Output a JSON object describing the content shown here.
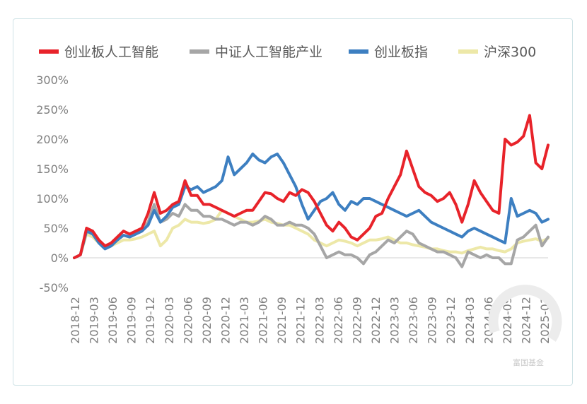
{
  "chart_data": {
    "type": "line",
    "title": "",
    "xlabel": "",
    "ylabel": "",
    "ylim": [
      -50,
      300
    ],
    "y_ticks": [
      "300%",
      "250%",
      "200%",
      "150%",
      "100%",
      "50%",
      "0%",
      "-50%"
    ],
    "y_tick_values": [
      300,
      250,
      200,
      150,
      100,
      50,
      0,
      -50
    ],
    "x_tick_labels": [
      "2018-12",
      "2019-03",
      "2019-06",
      "2019-09",
      "2019-12",
      "2020-03",
      "2020-06",
      "2020-09",
      "2020-12",
      "2021-03",
      "2021-06",
      "2021-09",
      "2021-12",
      "2022-03",
      "2022-06",
      "2022-09",
      "2022-12",
      "2023-03",
      "2023-06",
      "2023-09",
      "2023-12",
      "2024-03",
      "2024-06",
      "2024-09",
      "2024-12",
      "2025-03"
    ],
    "x_range": [
      0,
      77
    ],
    "grid": false,
    "legend_position": "top",
    "watermark": "富国基金",
    "series": [
      {
        "name": "创业板人工智能",
        "color": "#e8232a",
        "x": [
          0,
          1,
          2,
          3,
          4,
          5,
          6,
          7,
          8,
          9,
          10,
          11,
          12,
          13,
          14,
          15,
          16,
          17,
          18,
          19,
          20,
          21,
          22,
          23,
          24,
          25,
          26,
          27,
          28,
          29,
          30,
          31,
          32,
          33,
          34,
          35,
          36,
          37,
          38,
          39,
          40,
          41,
          42,
          43,
          44,
          45,
          46,
          47,
          48,
          49,
          50,
          51,
          52,
          53,
          54,
          55,
          56,
          57,
          58,
          59,
          60,
          61,
          62,
          63,
          64,
          65,
          66,
          67,
          68,
          69,
          70,
          71,
          72,
          73,
          74,
          75,
          76,
          77
        ],
        "values": [
          0,
          5,
          50,
          45,
          30,
          20,
          25,
          35,
          45,
          40,
          45,
          50,
          75,
          110,
          75,
          80,
          90,
          95,
          130,
          105,
          105,
          90,
          90,
          85,
          80,
          75,
          70,
          75,
          80,
          80,
          95,
          110,
          108,
          100,
          95,
          110,
          105,
          115,
          110,
          95,
          75,
          55,
          45,
          60,
          50,
          35,
          30,
          40,
          50,
          70,
          75,
          100,
          120,
          140,
          180,
          150,
          120,
          110,
          105,
          95,
          100,
          110,
          90,
          60,
          90,
          130,
          110,
          95,
          80,
          75,
          200,
          190,
          195,
          205,
          240,
          160,
          150,
          190
        ],
        "ref_labels": {
          "0": "2018-12",
          "3": "2019-03",
          "12": "2019-12",
          "24": "2020-12",
          "36": "2021-12",
          "48": "2022-12",
          "60": "2023-12",
          "72": "2024-12"
        }
      },
      {
        "name": "中证人工智能产业",
        "color": "#a6a6a6",
        "x": [
          0,
          1,
          2,
          3,
          4,
          5,
          6,
          7,
          8,
          9,
          10,
          11,
          12,
          13,
          14,
          15,
          16,
          17,
          18,
          19,
          20,
          21,
          22,
          23,
          24,
          25,
          26,
          27,
          28,
          29,
          30,
          31,
          32,
          33,
          34,
          35,
          36,
          37,
          38,
          39,
          40,
          41,
          42,
          43,
          44,
          45,
          46,
          47,
          48,
          49,
          50,
          51,
          52,
          53,
          54,
          55,
          56,
          57,
          58,
          59,
          60,
          61,
          62,
          63,
          64,
          65,
          66,
          67,
          68,
          69,
          70,
          71,
          72,
          73,
          74,
          75,
          76,
          77
        ],
        "values": [
          0,
          5,
          48,
          40,
          28,
          20,
          22,
          30,
          38,
          35,
          40,
          45,
          60,
          90,
          60,
          65,
          75,
          70,
          90,
          80,
          80,
          70,
          70,
          65,
          65,
          60,
          55,
          60,
          60,
          55,
          60,
          70,
          65,
          55,
          55,
          60,
          55,
          55,
          50,
          40,
          20,
          0,
          5,
          10,
          5,
          5,
          0,
          -10,
          5,
          10,
          20,
          30,
          25,
          35,
          45,
          40,
          25,
          20,
          15,
          10,
          10,
          5,
          0,
          -15,
          10,
          5,
          0,
          5,
          0,
          0,
          -10,
          -10,
          30,
          35,
          45,
          55,
          20,
          35
        ]
      },
      {
        "name": "创业板指",
        "color": "#3d7fc1",
        "x": [
          0,
          1,
          2,
          3,
          4,
          5,
          6,
          7,
          8,
          9,
          10,
          11,
          12,
          13,
          14,
          15,
          16,
          17,
          18,
          19,
          20,
          21,
          22,
          23,
          24,
          25,
          26,
          27,
          28,
          29,
          30,
          31,
          32,
          33,
          34,
          35,
          36,
          37,
          38,
          39,
          40,
          41,
          42,
          43,
          44,
          45,
          46,
          47,
          48,
          49,
          50,
          51,
          52,
          53,
          54,
          55,
          56,
          57,
          58,
          59,
          60,
          61,
          62,
          63,
          64,
          65,
          66,
          67,
          68,
          69,
          70,
          71,
          72,
          73,
          74,
          75,
          76,
          77
        ],
        "values": [
          0,
          5,
          45,
          40,
          25,
          15,
          20,
          30,
          38,
          35,
          40,
          45,
          55,
          80,
          60,
          70,
          85,
          90,
          120,
          115,
          120,
          110,
          115,
          120,
          130,
          170,
          140,
          150,
          160,
          175,
          165,
          160,
          170,
          175,
          160,
          140,
          120,
          90,
          65,
          80,
          95,
          100,
          110,
          90,
          80,
          95,
          90,
          100,
          100,
          95,
          90,
          85,
          80,
          75,
          70,
          75,
          80,
          70,
          60,
          55,
          50,
          45,
          40,
          35,
          45,
          50,
          45,
          40,
          35,
          30,
          25,
          100,
          70,
          75,
          80,
          75,
          60,
          65
        ]
      },
      {
        "name": "沪深300",
        "color": "#ede8a8",
        "x": [
          0,
          1,
          2,
          3,
          4,
          5,
          6,
          7,
          8,
          9,
          10,
          11,
          12,
          13,
          14,
          15,
          16,
          17,
          18,
          19,
          20,
          21,
          22,
          23,
          24,
          25,
          26,
          27,
          28,
          29,
          30,
          31,
          32,
          33,
          34,
          35,
          36,
          37,
          38,
          39,
          40,
          41,
          42,
          43,
          44,
          45,
          46,
          47,
          48,
          49,
          50,
          51,
          52,
          53,
          54,
          55,
          56,
          57,
          58,
          59,
          60,
          61,
          62,
          63,
          64,
          65,
          66,
          67,
          68,
          69,
          70,
          71,
          72,
          73,
          74,
          75,
          76,
          77
        ],
        "values": [
          0,
          5,
          40,
          35,
          25,
          20,
          20,
          25,
          30,
          30,
          32,
          35,
          40,
          45,
          20,
          30,
          50,
          55,
          65,
          60,
          60,
          58,
          60,
          65,
          80,
          75,
          70,
          65,
          60,
          60,
          62,
          65,
          60,
          58,
          55,
          55,
          50,
          45,
          40,
          30,
          25,
          20,
          25,
          30,
          28,
          25,
          20,
          25,
          30,
          30,
          32,
          35,
          30,
          25,
          25,
          22,
          20,
          18,
          15,
          15,
          12,
          10,
          10,
          8,
          12,
          15,
          18,
          15,
          15,
          12,
          10,
          15,
          25,
          28,
          30,
          32,
          28,
          33
        ]
      }
    ]
  }
}
